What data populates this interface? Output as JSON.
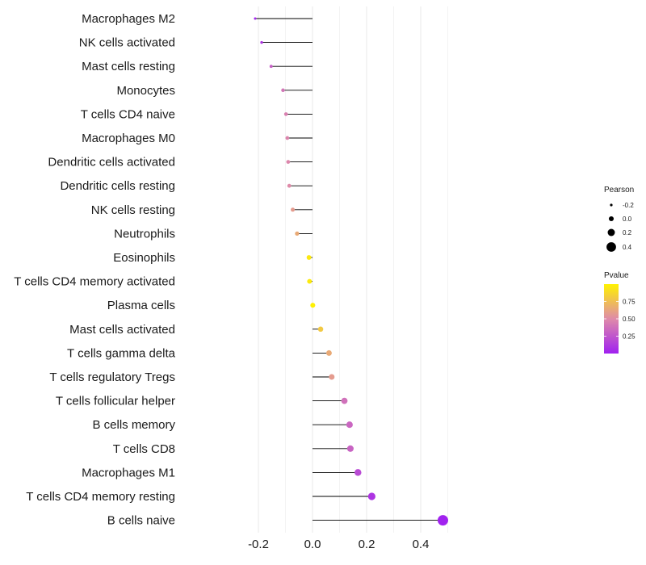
{
  "chart_data": {
    "type": "lollipop",
    "title": "",
    "xlabel": "",
    "ylabel": "",
    "xlim": [
      -0.25,
      0.52
    ],
    "x_ticks": [
      -0.2,
      0.0,
      0.2,
      0.4
    ],
    "x_tick_labels": [
      "-0.2",
      "0.0",
      "0.2",
      "0.4"
    ],
    "grid": true,
    "baseline": 0.0,
    "categories": [
      "Macrophages M2",
      "NK cells activated",
      "Mast cells resting",
      "Monocytes",
      "T cells CD4 naive",
      "Macrophages M0",
      "Dendritic cells activated",
      "Dendritic cells resting",
      "NK cells resting",
      "Neutrophils",
      "Eosinophils",
      "T cells CD4 memory activated",
      "Plasma cells",
      "Mast cells activated",
      "T cells gamma delta",
      "T cells regulatory  Tregs ",
      "T cells follicular helper",
      "B cells memory",
      "T cells CD8",
      "Macrophages M1",
      "T cells CD4 memory resting",
      "B cells naive"
    ],
    "pearson": [
      -0.212,
      -0.188,
      -0.153,
      -0.109,
      -0.098,
      -0.093,
      -0.09,
      -0.086,
      -0.073,
      -0.057,
      -0.013,
      -0.011,
      0.001,
      0.03,
      0.061,
      0.071,
      0.118,
      0.137,
      0.14,
      0.168,
      0.219,
      0.482
    ],
    "pvalue": [
      0.02,
      0.1,
      0.3,
      0.4,
      0.45,
      0.47,
      0.48,
      0.5,
      0.58,
      0.65,
      0.95,
      0.96,
      0.99,
      0.8,
      0.65,
      0.58,
      0.38,
      0.33,
      0.32,
      0.2,
      0.1,
      0.01
    ],
    "legend_size": {
      "title": "Pearson",
      "values": [
        -0.2,
        0.0,
        0.2,
        0.4
      ],
      "labels": [
        "-0.2",
        "0.0",
        "0.2",
        "0.4"
      ]
    },
    "legend_color": {
      "title": "Pvalue",
      "ticks": [
        0.75,
        0.5,
        0.25
      ],
      "tick_labels": [
        "0.75",
        "0.50",
        "0.25"
      ],
      "range": [
        0.0,
        1.0
      ],
      "low_color": "#a020f0",
      "mid_color": "#df8ba9",
      "high_color": "#fff200"
    },
    "line_color": "#000000",
    "grid_color": "#ebebeb"
  }
}
